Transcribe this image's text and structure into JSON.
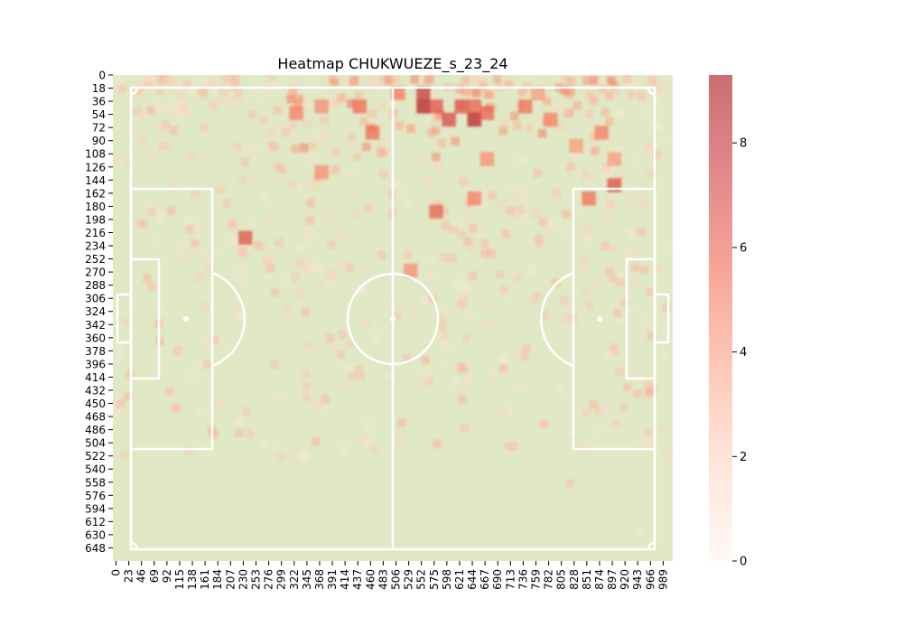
{
  "chart_data": {
    "type": "heatmap",
    "title": "Heatmap CHUKWUEZE_s_23_24",
    "xlabel": "",
    "ylabel": "",
    "x_tick_labels": [
      "0",
      "23",
      "46",
      "69",
      "92",
      "115",
      "138",
      "161",
      "184",
      "207",
      "230",
      "253",
      "276",
      "299",
      "322",
      "345",
      "368",
      "391",
      "414",
      "437",
      "460",
      "483",
      "506",
      "529",
      "552",
      "575",
      "598",
      "621",
      "644",
      "667",
      "690",
      "713",
      "736",
      "759",
      "782",
      "805",
      "828",
      "851",
      "874",
      "897",
      "920",
      "943",
      "966",
      "989"
    ],
    "y_tick_labels": [
      "0",
      "18",
      "36",
      "54",
      "72",
      "90",
      "108",
      "126",
      "144",
      "162",
      "180",
      "198",
      "216",
      "234",
      "252",
      "270",
      "288",
      "306",
      "324",
      "342",
      "360",
      "378",
      "396",
      "414",
      "432",
      "450",
      "468",
      "486",
      "504",
      "522",
      "540",
      "558",
      "576",
      "594",
      "612",
      "630",
      "648"
    ],
    "xlim": [
      0,
      1012
    ],
    "ylim": [
      0,
      666
    ],
    "colorbar": {
      "range": [
        0,
        9.3
      ],
      "ticks": [
        "0",
        "2",
        "4",
        "6",
        "8"
      ],
      "colors": [
        "#fff5f0",
        "#fdd4c2",
        "#fca487",
        "#f26a50",
        "#cc3a3f",
        "#a50f15"
      ],
      "alpha": 0.6
    },
    "pitch_color": "#e1e8c6",
    "line_color": "#ffffff",
    "hot_cells": [
      {
        "x": 552,
        "y": 18,
        "v": 7.5
      },
      {
        "x": 552,
        "y": 36,
        "v": 8.5
      },
      {
        "x": 575,
        "y": 36,
        "v": 6.5
      },
      {
        "x": 598,
        "y": 54,
        "v": 7.0
      },
      {
        "x": 621,
        "y": 36,
        "v": 6.5
      },
      {
        "x": 644,
        "y": 36,
        "v": 6.0
      },
      {
        "x": 644,
        "y": 54,
        "v": 8.5
      },
      {
        "x": 667,
        "y": 45,
        "v": 6.0
      },
      {
        "x": 506,
        "y": 18,
        "v": 5.0
      },
      {
        "x": 437,
        "y": 36,
        "v": 5.5
      },
      {
        "x": 460,
        "y": 72,
        "v": 5.5
      },
      {
        "x": 368,
        "y": 36,
        "v": 4.5
      },
      {
        "x": 322,
        "y": 45,
        "v": 5.0
      },
      {
        "x": 736,
        "y": 36,
        "v": 5.5
      },
      {
        "x": 759,
        "y": 18,
        "v": 4.0
      },
      {
        "x": 782,
        "y": 54,
        "v": 5.0
      },
      {
        "x": 851,
        "y": 162,
        "v": 5.5
      },
      {
        "x": 897,
        "y": 144,
        "v": 6.5
      },
      {
        "x": 874,
        "y": 72,
        "v": 5.0
      },
      {
        "x": 644,
        "y": 162,
        "v": 5.0
      },
      {
        "x": 575,
        "y": 180,
        "v": 6.0
      },
      {
        "x": 230,
        "y": 216,
        "v": 6.5
      },
      {
        "x": 529,
        "y": 261,
        "v": 4.5
      },
      {
        "x": 368,
        "y": 126,
        "v": 4.5
      },
      {
        "x": 667,
        "y": 108,
        "v": 4.5
      },
      {
        "x": 897,
        "y": 108,
        "v": 4.0
      },
      {
        "x": 828,
        "y": 90,
        "v": 4.0
      }
    ]
  }
}
